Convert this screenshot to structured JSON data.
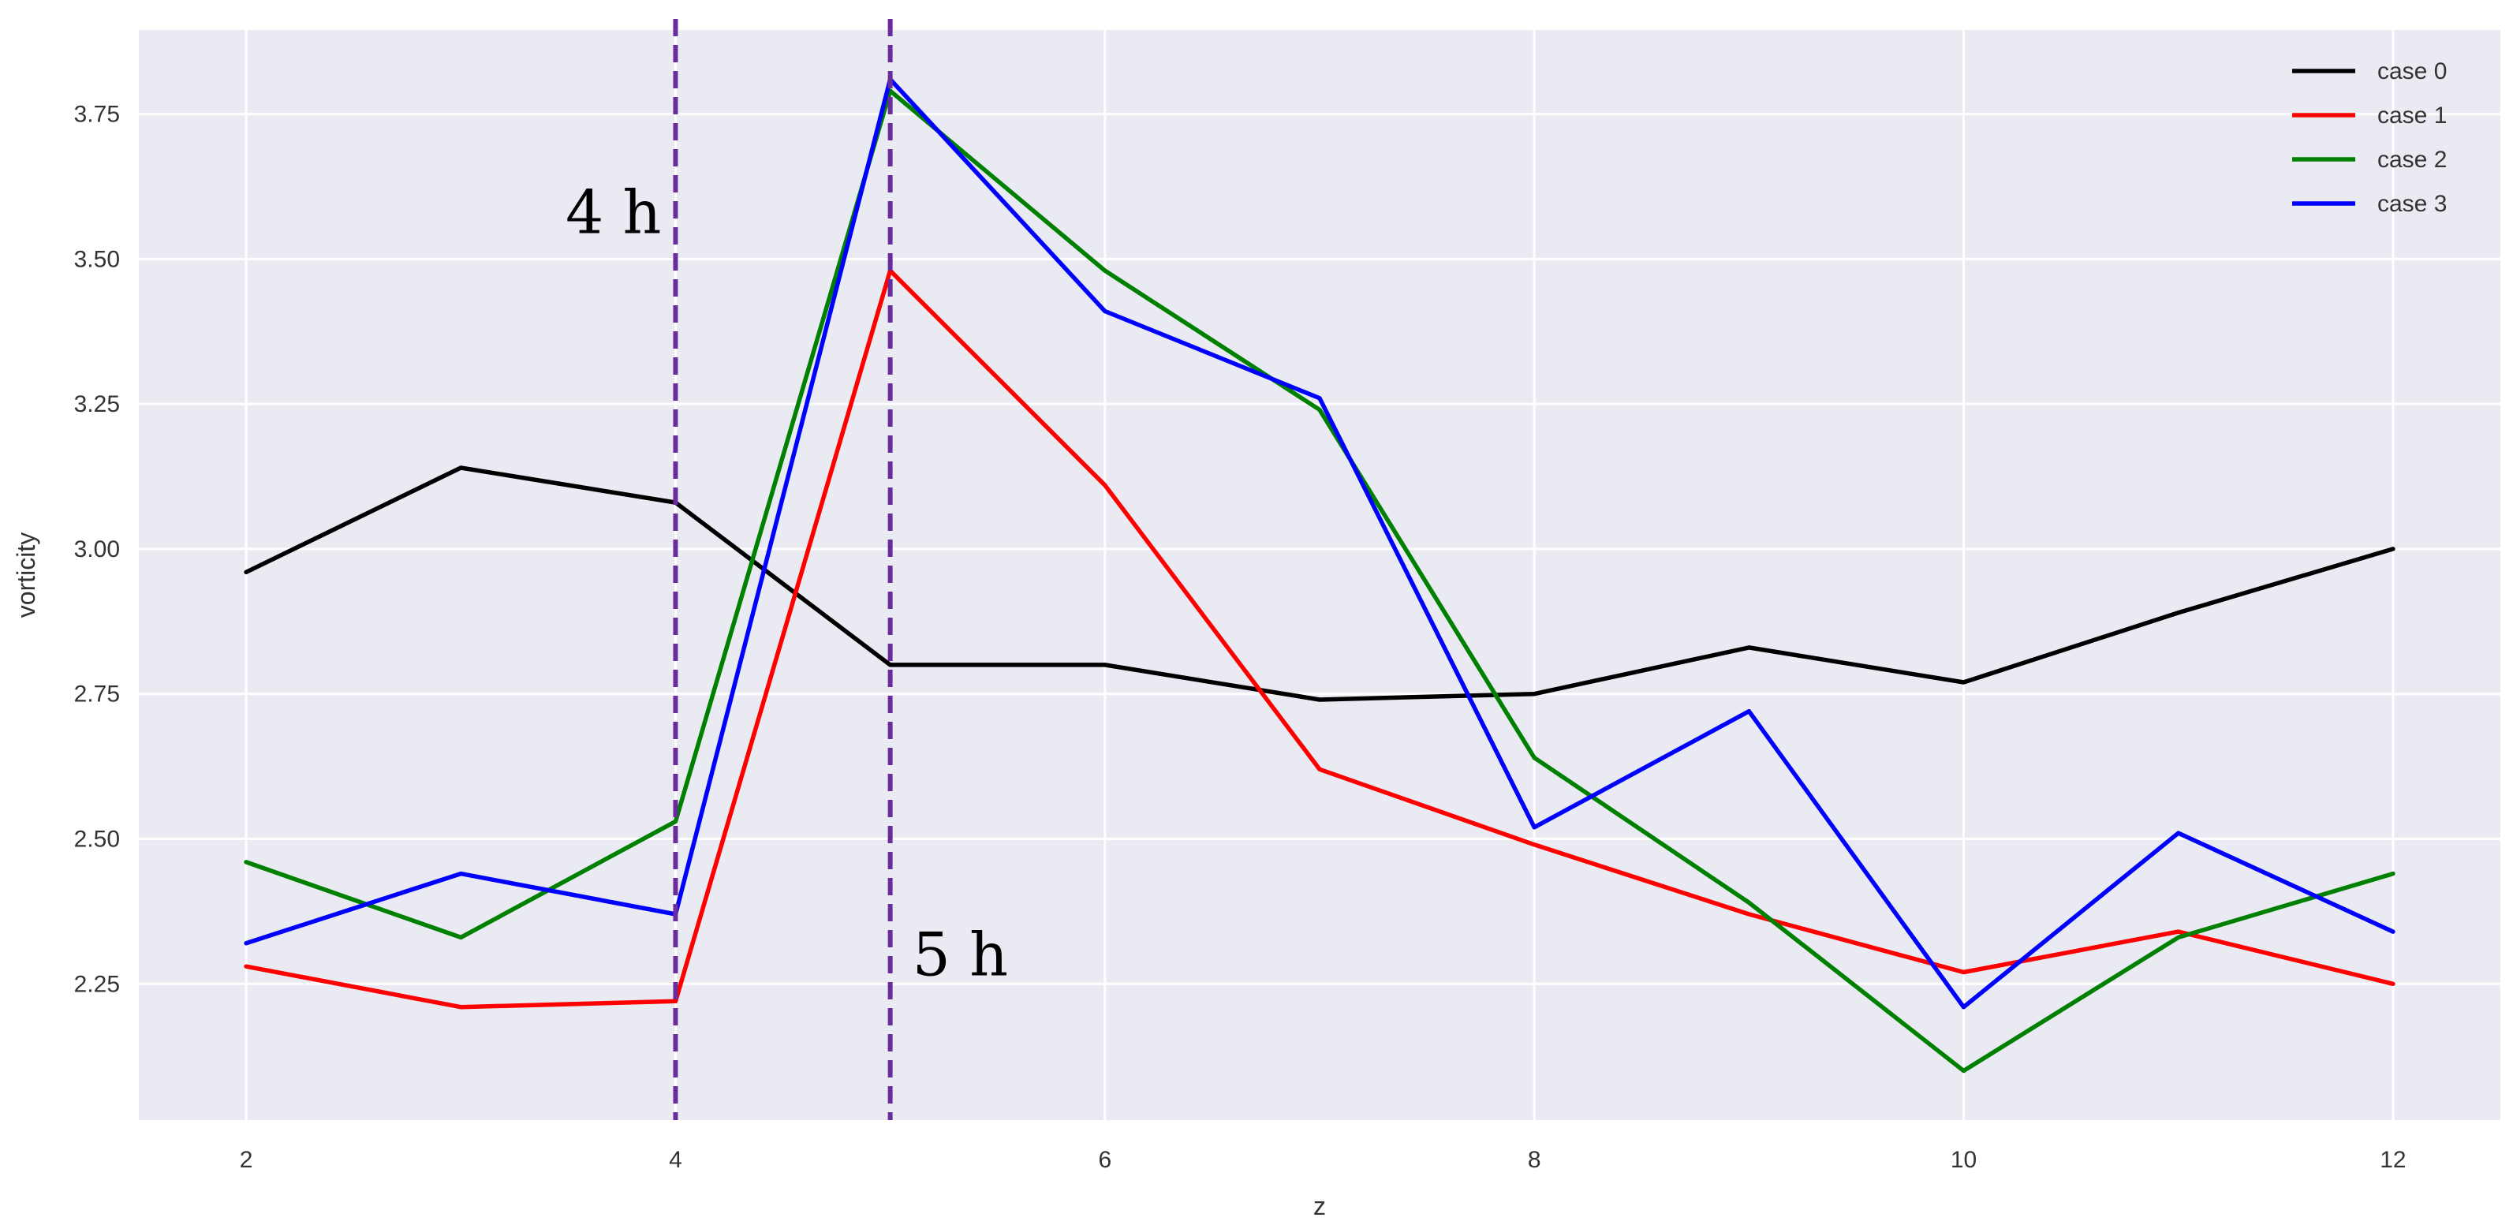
{
  "chart_data": {
    "type": "line",
    "xlabel": "z",
    "ylabel": "vorticity",
    "xlim": [
      1.5,
      12.5
    ],
    "ylim": [
      2.015,
      3.895
    ],
    "xticks": [
      2,
      4,
      6,
      8,
      10,
      12
    ],
    "yticks": [
      2.25,
      2.5,
      2.75,
      3.0,
      3.25,
      3.5,
      3.75
    ],
    "grid": true,
    "legend_position": "top-right",
    "x": [
      2,
      3,
      4,
      5,
      6,
      7,
      8,
      9,
      10,
      11,
      12
    ],
    "series": [
      {
        "name": "case 0",
        "color": "#000000",
        "values": [
          2.96,
          3.14,
          3.08,
          2.8,
          2.8,
          2.74,
          2.75,
          2.83,
          2.77,
          2.89,
          3.0
        ]
      },
      {
        "name": "case 1",
        "color": "#ff0000",
        "values": [
          2.28,
          2.21,
          2.22,
          3.48,
          3.11,
          2.62,
          2.49,
          2.37,
          2.27,
          2.34,
          2.25
        ]
      },
      {
        "name": "case 2",
        "color": "#008000",
        "values": [
          2.46,
          2.33,
          2.53,
          3.79,
          3.48,
          3.24,
          2.64,
          2.39,
          2.1,
          2.33,
          2.44
        ]
      },
      {
        "name": "case 3",
        "color": "#0000ff",
        "values": [
          2.32,
          2.44,
          2.37,
          3.81,
          3.41,
          3.26,
          2.52,
          2.72,
          2.21,
          2.51,
          2.34
        ]
      }
    ],
    "vlines": [
      {
        "x": 4,
        "label": "4 h",
        "color": "#6a2c9c",
        "style": "dashed",
        "label_side": "left",
        "label_y": 3.58
      },
      {
        "x": 5,
        "label": "5 h",
        "color": "#6a2c9c",
        "style": "dashed",
        "label_side": "right",
        "label_y": 2.3
      }
    ],
    "colors": {
      "background": "#eaeaf2",
      "grid": "#ffffff"
    }
  }
}
